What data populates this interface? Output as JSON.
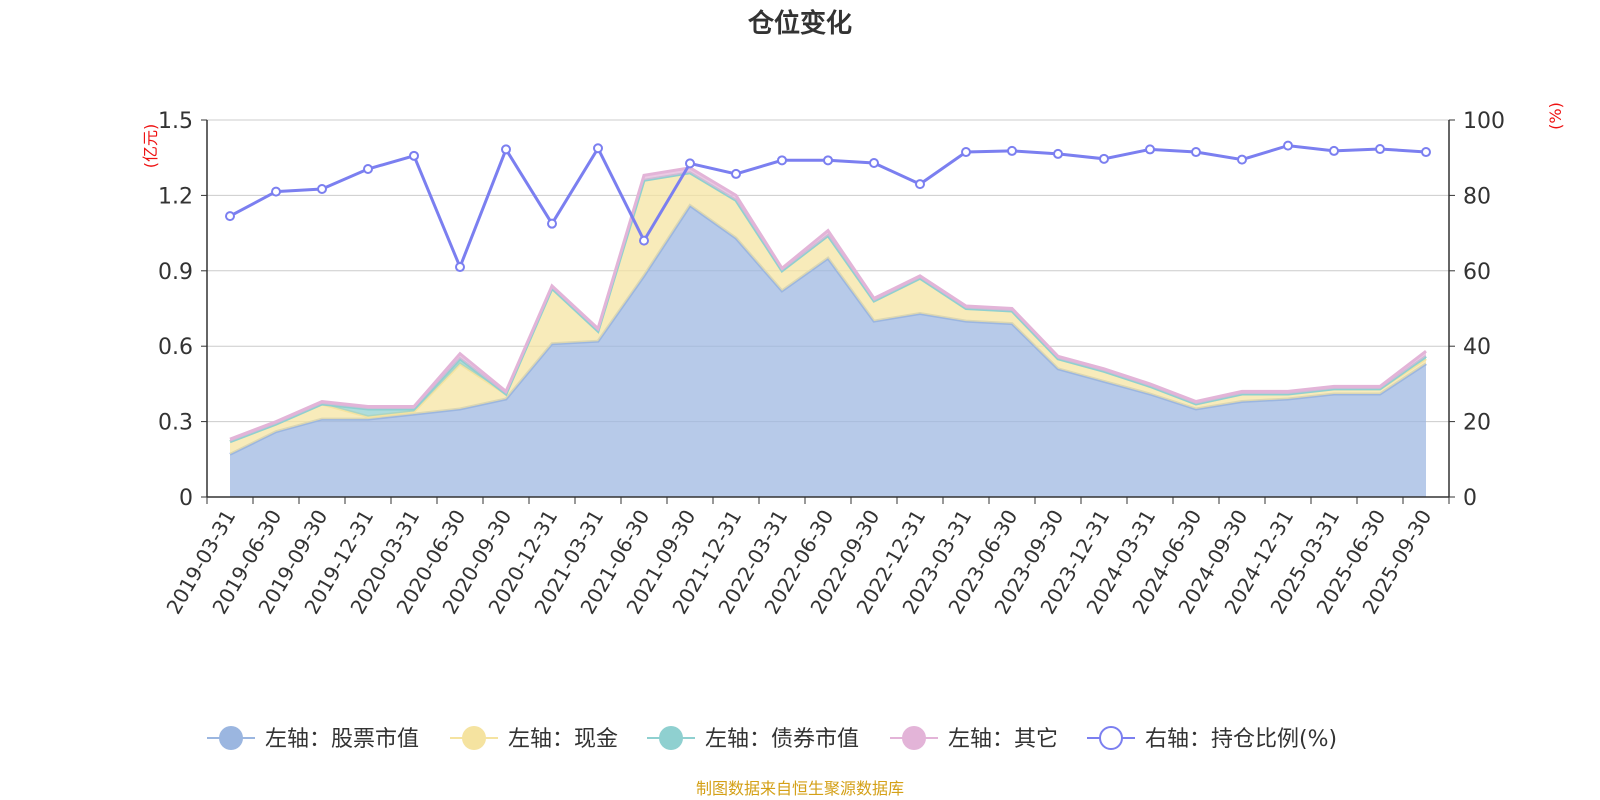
{
  "chart_data": {
    "type": "area",
    "title": "仓位变化",
    "left_axis": {
      "unit": "(亿元)",
      "ylim": [
        0,
        1.5
      ],
      "ticks": [
        "0",
        "0.3",
        "0.6",
        "0.9",
        "1.2",
        "1.5"
      ],
      "tick_values": [
        0,
        0.3,
        0.6,
        0.9,
        1.2,
        1.5
      ]
    },
    "right_axis": {
      "unit": "(%)",
      "ylim": [
        0,
        100
      ],
      "ticks": [
        "0",
        "20",
        "40",
        "60",
        "80",
        "100"
      ],
      "tick_values": [
        0,
        20,
        40,
        60,
        80,
        100
      ]
    },
    "categories": [
      "2019-03-31",
      "2019-06-30",
      "2019-09-30",
      "2019-12-31",
      "2020-03-31",
      "2020-06-30",
      "2020-09-30",
      "2020-12-31",
      "2021-03-31",
      "2021-06-30",
      "2021-09-30",
      "2021-12-31",
      "2022-03-31",
      "2022-06-30",
      "2022-09-30",
      "2022-12-31",
      "2023-03-31",
      "2023-06-30",
      "2023-09-30",
      "2023-12-31",
      "2024-03-31",
      "2024-06-30",
      "2024-09-30",
      "2024-12-31",
      "2025-03-31",
      "2025-06-30",
      "2025-09-30"
    ],
    "series": [
      {
        "name": "左轴：股票市值",
        "axis": "left",
        "color": "#9bb6e0",
        "values": [
          0.17,
          0.26,
          0.31,
          0.31,
          0.33,
          0.35,
          0.39,
          0.61,
          0.62,
          0.88,
          1.16,
          1.03,
          0.82,
          0.95,
          0.7,
          0.73,
          0.7,
          0.69,
          0.51,
          0.46,
          0.41,
          0.35,
          0.38,
          0.39,
          0.41,
          0.41,
          0.53
        ]
      },
      {
        "name": "左轴：现金",
        "axis": "left",
        "color": "#f5e3a0",
        "values": [
          0.05,
          0.03,
          0.06,
          0.01,
          0.01,
          0.18,
          0.02,
          0.22,
          0.04,
          0.38,
          0.13,
          0.15,
          0.08,
          0.09,
          0.08,
          0.14,
          0.05,
          0.05,
          0.04,
          0.04,
          0.03,
          0.02,
          0.03,
          0.02,
          0.02,
          0.02,
          0.02
        ]
      },
      {
        "name": "左轴：债券市值",
        "axis": "left",
        "color": "#8fd0d0",
        "values": [
          0,
          0,
          0,
          0.03,
          0.01,
          0.02,
          0,
          0,
          0,
          0,
          0,
          0,
          0,
          0,
          0,
          0,
          0,
          0,
          0,
          0,
          0,
          0,
          0,
          0,
          0,
          0,
          0.01
        ]
      },
      {
        "name": "左轴：其它",
        "axis": "left",
        "color": "#e3b4d8",
        "values": [
          0.01,
          0.01,
          0.01,
          0.01,
          0.01,
          0.02,
          0.01,
          0.01,
          0.01,
          0.02,
          0.02,
          0.02,
          0.01,
          0.02,
          0.01,
          0.01,
          0.01,
          0.01,
          0.01,
          0.01,
          0.01,
          0.01,
          0.01,
          0.01,
          0.01,
          0.01,
          0.02
        ]
      },
      {
        "name": "右轴：持仓比例(%)",
        "axis": "right",
        "color": "#7b7ff0",
        "values": [
          74.5,
          81,
          81.7,
          87,
          90.5,
          61,
          92.2,
          72.5,
          92.5,
          68,
          88.5,
          85.7,
          89.3,
          89.3,
          88.6,
          83,
          91.5,
          91.8,
          91,
          89.7,
          92.2,
          91.5,
          89.5,
          93.2,
          91.8,
          92.3,
          91.5
        ]
      }
    ],
    "legend_position": "bottom-center",
    "grid": true
  },
  "source_note": "制图数据来自恒生聚源数据库"
}
